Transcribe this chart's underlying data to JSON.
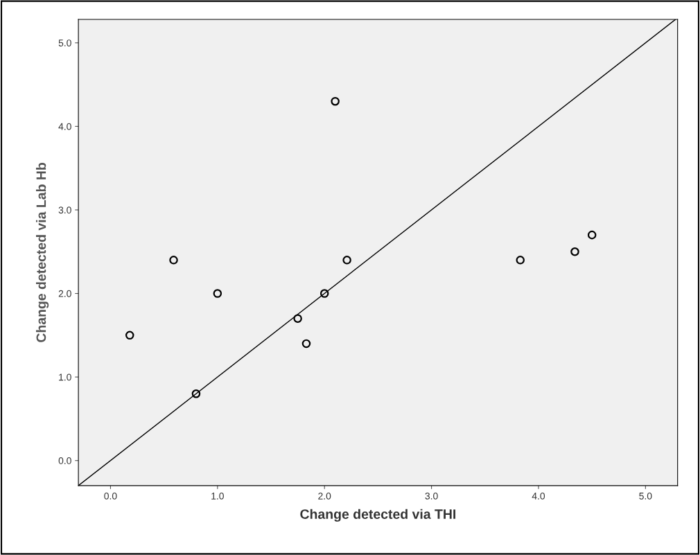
{
  "chart_data": {
    "type": "scatter",
    "xlabel": "Change detected via THI",
    "ylabel": "Change detected via Lab Hb",
    "xlim": [
      -0.3,
      5.3
    ],
    "ylim": [
      -0.3,
      5.28
    ],
    "xticks": [
      {
        "value": 0,
        "label": "0.0"
      },
      {
        "value": 1,
        "label": "1.0"
      },
      {
        "value": 2,
        "label": "2.0"
      },
      {
        "value": 3,
        "label": "3.0"
      },
      {
        "value": 4,
        "label": "4.0"
      },
      {
        "value": 5,
        "label": "5.0"
      }
    ],
    "yticks": [
      {
        "value": 0,
        "label": "0.0"
      },
      {
        "value": 1,
        "label": "1.0"
      },
      {
        "value": 2,
        "label": "2.0"
      },
      {
        "value": 3,
        "label": "3.0"
      },
      {
        "value": 4,
        "label": "4.0"
      },
      {
        "value": 5,
        "label": "5.0"
      }
    ],
    "grid": false,
    "legend": false,
    "series": [
      {
        "marker": "circle",
        "color": "#000000",
        "x": [
          0.18,
          0.59,
          0.8,
          1.0,
          1.75,
          1.83,
          2.0,
          2.1,
          2.21,
          3.83,
          4.34,
          4.5
        ],
        "values": [
          1.5,
          2.4,
          0.8,
          2.0,
          1.7,
          1.4,
          2.0,
          4.3,
          2.4,
          2.4,
          2.5,
          2.7
        ]
      },
      {
        "type": "line",
        "marker": "none",
        "color": "#000000",
        "x": [
          -0.3,
          5.28
        ],
        "values": [
          -0.3,
          5.28
        ]
      }
    ]
  }
}
